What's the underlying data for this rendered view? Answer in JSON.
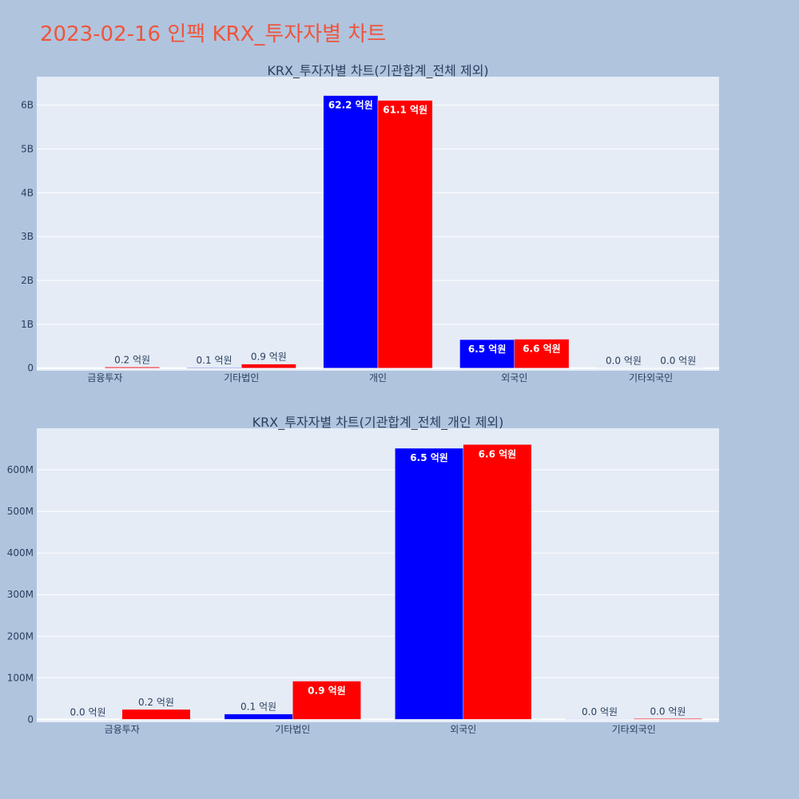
{
  "page_title": "2023-02-16 인팩 KRX_투자자별 차트",
  "chart_data": [
    {
      "type": "bar",
      "title": "KRX_투자자별 차트(기관합계_전체 제외)",
      "categories": [
        "금융투자",
        "기타법인",
        "개인",
        "외국인",
        "기타외국인"
      ],
      "series": [
        {
          "color": "#0000ff",
          "values": [
            0,
            13000000,
            6220000000,
            650000000,
            2000000
          ],
          "labels": [
            "",
            "0.1 억원",
            "62.2 억원",
            "6.5 억원",
            "0.0 억원"
          ]
        },
        {
          "color": "#ff0000",
          "values": [
            24000000,
            92000000,
            6110000000,
            660000000,
            2000000
          ],
          "labels": [
            "0.2 억원",
            "0.9 억원",
            "61.1 억원",
            "6.6 억원",
            "0.0 억원"
          ]
        }
      ],
      "ylim": [
        -60000000,
        6650000000
      ],
      "yticks": [
        0,
        1000000000,
        2000000000,
        3000000000,
        4000000000,
        5000000000,
        6000000000
      ],
      "yticklabels": [
        "0",
        "1B",
        "2B",
        "3B",
        "4B",
        "5B",
        "6B"
      ],
      "grid": true
    },
    {
      "type": "bar",
      "title": "KRX_투자자별 차트(기관합계_전체_개인 제외)",
      "categories": [
        "금융투자",
        "기타법인",
        "외국인",
        "기타외국인"
      ],
      "series": [
        {
          "color": "#0000ff",
          "values": [
            0,
            13000000,
            652000000,
            1000000
          ],
          "labels": [
            "0.0 억원",
            "0.1 억원",
            "6.5 억원",
            "0.0 억원"
          ]
        },
        {
          "color": "#ff0000",
          "values": [
            24000000,
            92000000,
            661000000,
            2000000
          ],
          "labels": [
            "0.2 억원",
            "0.9 억원",
            "6.6 억원",
            "0.0 억원"
          ]
        }
      ],
      "ylim": [
        -7000000,
        700000000
      ],
      "yticks": [
        0,
        100000000,
        200000000,
        300000000,
        400000000,
        500000000,
        600000000
      ],
      "yticklabels": [
        "0",
        "100M",
        "200M",
        "300M",
        "400M",
        "500M",
        "600M"
      ],
      "grid": true
    }
  ]
}
